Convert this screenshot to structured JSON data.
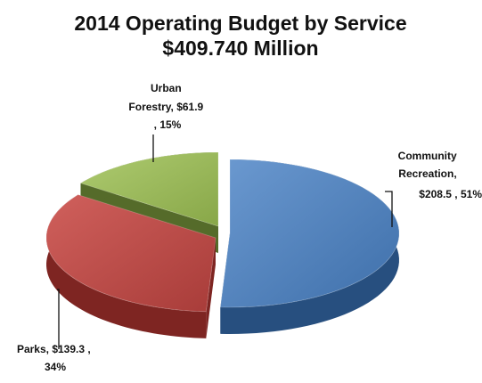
{
  "chart_data": {
    "type": "pie",
    "title": "2014 Operating Budget by Service",
    "subtitle": "$409.740 Million",
    "slices": [
      {
        "name": "Community Recreation",
        "value": 208.5,
        "percent": 51,
        "label_lines": [
          "Community",
          "Recreation,",
          "$208.5 , 51%"
        ],
        "color": "#4F81BD",
        "side_color": "#274F7F"
      },
      {
        "name": "Parks",
        "value": 139.3,
        "percent": 34,
        "label_lines": [
          "Parks, $139.3 ,",
          "34%"
        ],
        "color": "#C0504D",
        "side_color": "#7E2522"
      },
      {
        "name": "Urban Forestry",
        "value": 61.9,
        "percent": 15,
        "label_lines": [
          "Urban",
          "Forestry, $61.9",
          ", 15%"
        ],
        "color": "#9BBB59",
        "side_color": "#556B2A"
      }
    ],
    "exploded": true,
    "perspective_3d": true
  }
}
